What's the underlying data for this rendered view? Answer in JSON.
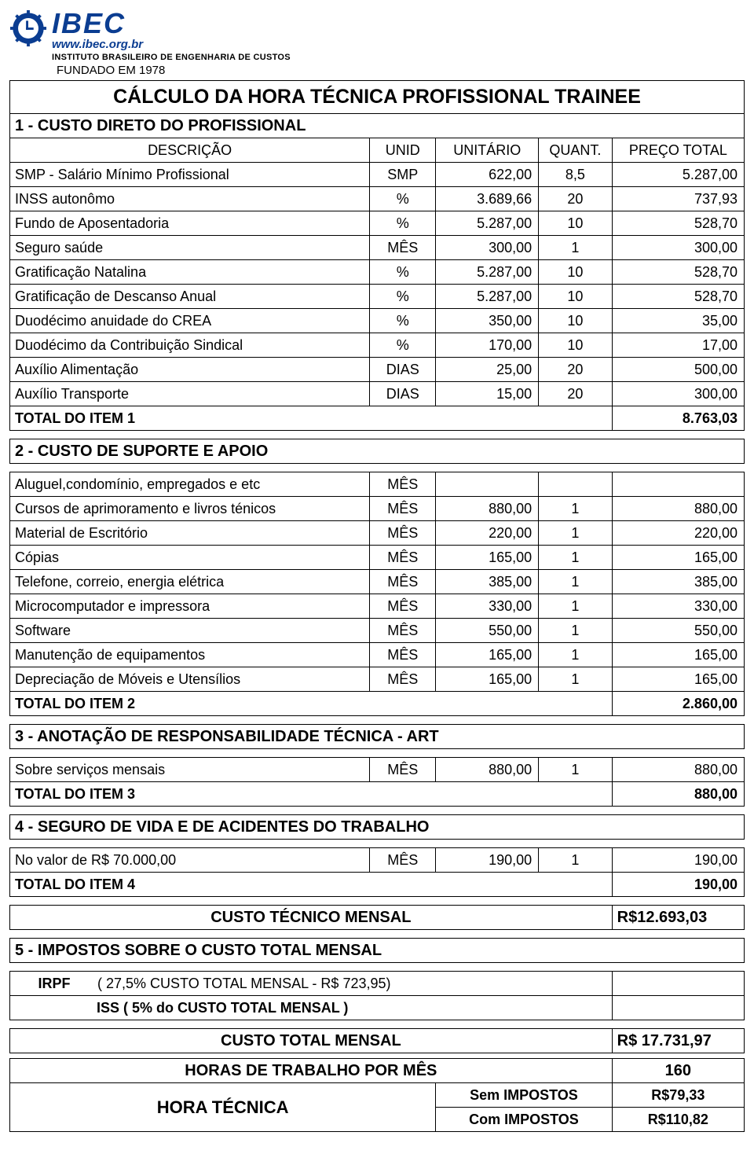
{
  "logo": {
    "name": "IBEC",
    "url": "www.ibec.org.br",
    "subtitle": "INSTITUTO BRASILEIRO DE ENGENHARIA DE CUSTOS",
    "founded": "FUNDADO EM 1978",
    "color": "#0b3d91"
  },
  "title": "CÁLCULO  DA  HORA  TÉCNICA  PROFISSIONAL  TRAINEE",
  "headers": {
    "desc": "DESCRIÇÃO",
    "unid": "UNID",
    "unit": "UNITÁRIO",
    "quant": "QUANT.",
    "total": "PREÇO TOTAL"
  },
  "sec1": {
    "title": "1 - CUSTO DIRETO DO PROFISSIONAL",
    "rows": [
      {
        "d": "SMP - Salário Mínimo Profissional",
        "u": "SMP",
        "v": "622,00",
        "q": "8,5",
        "t": "5.287,00"
      },
      {
        "d": "INSS  autonômo",
        "u": "%",
        "v": "3.689,66",
        "q": "20",
        "t": "737,93"
      },
      {
        "d": "Fundo de Aposentadoria",
        "u": "%",
        "v": "5.287,00",
        "q": "10",
        "t": "528,70"
      },
      {
        "d": "Seguro saúde",
        "u": "MÊS",
        "v": "300,00",
        "q": "1",
        "t": "300,00"
      },
      {
        "d": "Gratificação Natalina",
        "u": "%",
        "v": "5.287,00",
        "q": "10",
        "t": "528,70"
      },
      {
        "d": "Gratificação de Descanso Anual",
        "u": "%",
        "v": "5.287,00",
        "q": "10",
        "t": "528,70"
      },
      {
        "d": "Duodécimo anuidade do CREA",
        "u": "%",
        "v": "350,00",
        "q": "10",
        "t": "35,00"
      },
      {
        "d": "Duodécimo da Contribuição Sindical",
        "u": "%",
        "v": "170,00",
        "q": "10",
        "t": "17,00"
      },
      {
        "d": "Auxílio Alimentação",
        "u": "DIAS",
        "v": "25,00",
        "q": "20",
        "t": "500,00"
      },
      {
        "d": "Auxílio Transporte",
        "u": "DIAS",
        "v": "15,00",
        "q": "20",
        "t": "300,00"
      }
    ],
    "total_label": "TOTAL  DO  ITEM  1",
    "total": "8.763,03"
  },
  "sec2": {
    "title": "2 - CUSTO  DE  SUPORTE  E  APOIO",
    "rows": [
      {
        "d": "Aluguel,condomínio, empregados e etc",
        "u": "MÊS",
        "v": "",
        "q": "",
        "t": ""
      },
      {
        "d": "Cursos de aprimoramento e livros ténicos",
        "u": "MÊS",
        "v": "880,00",
        "q": "1",
        "t": "880,00"
      },
      {
        "d": "Material de Escritório",
        "u": "MÊS",
        "v": "220,00",
        "q": "1",
        "t": "220,00"
      },
      {
        "d": "Cópias",
        "u": "MÊS",
        "v": "165,00",
        "q": "1",
        "t": "165,00"
      },
      {
        "d": "Telefone, correio, energia elétrica",
        "u": "MÊS",
        "v": "385,00",
        "q": "1",
        "t": "385,00"
      },
      {
        "d": "Microcomputador e impressora",
        "u": "MÊS",
        "v": "330,00",
        "q": "1",
        "t": "330,00"
      },
      {
        "d": "Software",
        "u": "MÊS",
        "v": "550,00",
        "q": "1",
        "t": "550,00"
      },
      {
        "d": "Manutenção de equipamentos",
        "u": "MÊS",
        "v": "165,00",
        "q": "1",
        "t": "165,00"
      },
      {
        "d": "Depreciação de Móveis e Utensílios",
        "u": "MÊS",
        "v": "165,00",
        "q": "1",
        "t": "165,00"
      }
    ],
    "total_label": "TOTAL  DO  ITEM  2",
    "total": "2.860,00"
  },
  "sec3": {
    "title": "3 - ANOTAÇÃO DE RESPONSABILIDADE TÉCNICA  -  ART",
    "rows": [
      {
        "d": "Sobre serviços mensais",
        "u": "MÊS",
        "v": "880,00",
        "q": "1",
        "t": "880,00"
      }
    ],
    "total_label": "TOTAL  DO  ITEM  3",
    "total": "880,00"
  },
  "sec4": {
    "title": "4 - SEGURO DE VIDA E DE ACIDENTES DO TRABALHO",
    "rows": [
      {
        "d": "No valor de R$ 70.000,00",
        "u": "MÊS",
        "v": "190,00",
        "q": "1",
        "t": "190,00"
      }
    ],
    "total_label": "TOTAL  DO  ITEM  4",
    "total": "190,00"
  },
  "custo_tecnico": {
    "label": "CUSTO  TÉCNICO  MENSAL",
    "value": "R$12.693,03"
  },
  "sec5": {
    "title": "5 - IMPOSTOS  SOBRE  O  CUSTO  TOTAL  MENSAL",
    "irpf_label": "IRPF",
    "irpf_text": "( 27,5% CUSTO TOTAL  MENSAL - R$ 723,95)",
    "iss_text": "ISS ( 5% do CUSTO TOTAL MENSAL )"
  },
  "custo_total": {
    "label": "CUSTO  TOTAL  MENSAL",
    "value": "R$ 17.731,97"
  },
  "horas_mes": {
    "label": "HORAS  DE  TRABALHO  POR  MÊS",
    "value": "160"
  },
  "hora_tecnica": {
    "label": "HORA   TÉCNICA",
    "sem_label": "Sem IMPOSTOS",
    "sem_value": "R$79,33",
    "com_label": "Com IMPOSTOS",
    "com_value": "R$110,82"
  }
}
